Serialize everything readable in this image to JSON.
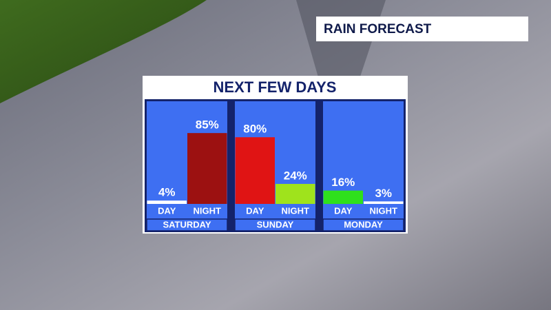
{
  "chart_data": {
    "type": "bar",
    "header": "RAIN FORECAST",
    "title": "NEXT FEW DAYS",
    "groups": [
      {
        "name": "SATURDAY",
        "categories": [
          "DAY",
          "NIGHT"
        ],
        "values": [
          4,
          85
        ],
        "value_labels": [
          "4%",
          "85%"
        ],
        "colors": [
          "#ffffff",
          "#9c1111"
        ]
      },
      {
        "name": "SUNDAY",
        "categories": [
          "DAY",
          "NIGHT"
        ],
        "values": [
          80,
          24
        ],
        "value_labels": [
          "80%",
          "24%"
        ],
        "colors": [
          "#e01414",
          "#9fe31c"
        ]
      },
      {
        "name": "MONDAY",
        "categories": [
          "DAY",
          "NIGHT"
        ],
        "values": [
          16,
          3
        ],
        "value_labels": [
          "16%",
          "3%"
        ],
        "colors": [
          "#2fe01c",
          "#ffffff"
        ]
      }
    ]
  }
}
